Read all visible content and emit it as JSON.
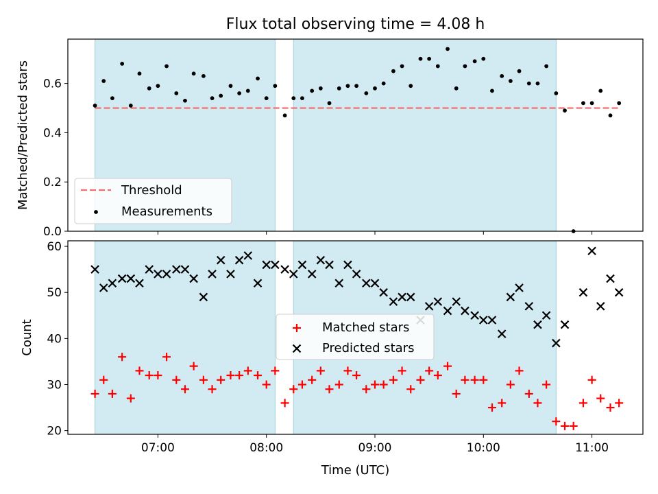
{
  "chart_data": {
    "title": "Flux total observing time = 4.08 h",
    "xlabel": "Time (UTC)",
    "x_ticks": [
      "07:00",
      "08:00",
      "09:00",
      "10:00",
      "11:00"
    ],
    "x_tick_values": [
      7.0,
      8.0,
      9.0,
      10.0,
      11.0
    ],
    "xlim": [
      6.17,
      11.47
    ],
    "shaded_intervals": [
      [
        6.42,
        8.08
      ],
      [
        8.25,
        10.67
      ]
    ],
    "shade_color": "#add8e6",
    "panels": [
      {
        "type": "scatter",
        "ylabel": "Matched/Predicted stars",
        "ylim": [
          0.0,
          0.78
        ],
        "y_ticks": [
          0.0,
          0.2,
          0.4,
          0.6
        ],
        "y_tick_labels": [
          "0.0",
          "0.2",
          "0.4",
          "0.6"
        ],
        "threshold": {
          "name": "Threshold",
          "value": 0.5,
          "x_range": [
            6.42,
            11.25
          ],
          "color": "#f07070"
        },
        "measurements": {
          "name": "Measurements",
          "color": "#000000",
          "x": [
            6.42,
            6.5,
            6.58,
            6.67,
            6.75,
            6.83,
            6.92,
            7.0,
            7.08,
            7.17,
            7.25,
            7.33,
            7.42,
            7.5,
            7.58,
            7.67,
            7.75,
            7.83,
            7.92,
            8.0,
            8.08,
            8.17,
            8.25,
            8.33,
            8.42,
            8.5,
            8.58,
            8.67,
            8.75,
            8.83,
            8.92,
            9.0,
            9.08,
            9.17,
            9.25,
            9.33,
            9.42,
            9.5,
            9.58,
            9.67,
            9.75,
            9.83,
            9.92,
            10.0,
            10.08,
            10.17,
            10.25,
            10.33,
            10.42,
            10.5,
            10.58,
            10.67,
            10.75,
            10.83,
            10.92,
            11.0,
            11.08,
            11.17,
            11.25
          ],
          "y": [
            0.51,
            0.61,
            0.54,
            0.68,
            0.51,
            0.64,
            0.58,
            0.59,
            0.67,
            0.56,
            0.53,
            0.64,
            0.63,
            0.54,
            0.55,
            0.59,
            0.56,
            0.57,
            0.62,
            0.54,
            0.59,
            0.47,
            0.54,
            0.54,
            0.57,
            0.58,
            0.52,
            0.58,
            0.59,
            0.59,
            0.56,
            0.58,
            0.6,
            0.65,
            0.67,
            0.59,
            0.7,
            0.7,
            0.67,
            0.74,
            0.58,
            0.67,
            0.69,
            0.7,
            0.57,
            0.63,
            0.61,
            0.65,
            0.6,
            0.6,
            0.67,
            0.56,
            0.49,
            0.0,
            0.52,
            0.52,
            0.57,
            0.47,
            0.52
          ]
        }
      },
      {
        "type": "scatter",
        "ylabel": "Count",
        "ylim": [
          19.2,
          61.2
        ],
        "y_ticks": [
          20,
          30,
          40,
          50,
          60
        ],
        "y_tick_labels": [
          "20",
          "30",
          "40",
          "50",
          "60"
        ],
        "series": [
          {
            "name": "Matched stars",
            "marker": "plus",
            "color": "#ff0000",
            "x": [
              6.42,
              6.5,
              6.58,
              6.67,
              6.75,
              6.83,
              6.92,
              7.0,
              7.08,
              7.17,
              7.25,
              7.33,
              7.42,
              7.5,
              7.58,
              7.67,
              7.75,
              7.83,
              7.92,
              8.0,
              8.08,
              8.17,
              8.25,
              8.33,
              8.42,
              8.5,
              8.58,
              8.67,
              8.75,
              8.83,
              8.92,
              9.0,
              9.08,
              9.17,
              9.25,
              9.33,
              9.42,
              9.5,
              9.58,
              9.67,
              9.75,
              9.83,
              9.92,
              10.0,
              10.08,
              10.17,
              10.25,
              10.33,
              10.42,
              10.5,
              10.58,
              10.67,
              10.75,
              10.83,
              10.92,
              11.0,
              11.08,
              11.17,
              11.25
            ],
            "values": [
              28,
              31,
              28,
              36,
              27,
              33,
              32,
              32,
              36,
              31,
              29,
              34,
              31,
              29,
              31,
              32,
              32,
              33,
              32,
              30,
              33,
              26,
              29,
              30,
              31,
              33,
              29,
              30,
              33,
              32,
              29,
              30,
              30,
              31,
              33,
              29,
              31,
              33,
              32,
              34,
              28,
              31,
              31,
              31,
              25,
              26,
              30,
              33,
              28,
              26,
              30,
              22,
              21,
              21,
              26,
              31,
              27,
              25,
              26
            ]
          },
          {
            "name": "Predicted stars",
            "marker": "x",
            "color": "#000000",
            "x": [
              6.42,
              6.5,
              6.58,
              6.67,
              6.75,
              6.83,
              6.92,
              7.0,
              7.08,
              7.17,
              7.25,
              7.33,
              7.42,
              7.5,
              7.58,
              7.67,
              7.75,
              7.83,
              7.92,
              8.0,
              8.08,
              8.17,
              8.25,
              8.33,
              8.42,
              8.5,
              8.58,
              8.67,
              8.75,
              8.83,
              8.92,
              9.0,
              9.08,
              9.17,
              9.25,
              9.33,
              9.42,
              9.5,
              9.58,
              9.67,
              9.75,
              9.83,
              9.92,
              10.0,
              10.08,
              10.17,
              10.25,
              10.33,
              10.42,
              10.5,
              10.58,
              10.67,
              10.75,
              10.83,
              10.92,
              11.0,
              11.08,
              11.17,
              11.25
            ],
            "values": [
              55,
              51,
              52,
              53,
              53,
              52,
              55,
              54,
              54,
              55,
              55,
              53,
              49,
              54,
              57,
              54,
              57,
              58,
              52,
              56,
              56,
              55,
              54,
              56,
              54,
              57,
              56,
              52,
              56,
              54,
              52,
              52,
              50,
              48,
              49,
              49,
              44,
              47,
              48,
              46,
              48,
              46,
              45,
              44,
              44,
              41,
              49,
              51,
              47,
              43,
              45,
              39,
              43,
              null,
              50,
              59,
              47,
              53,
              50
            ]
          }
        ]
      }
    ]
  }
}
